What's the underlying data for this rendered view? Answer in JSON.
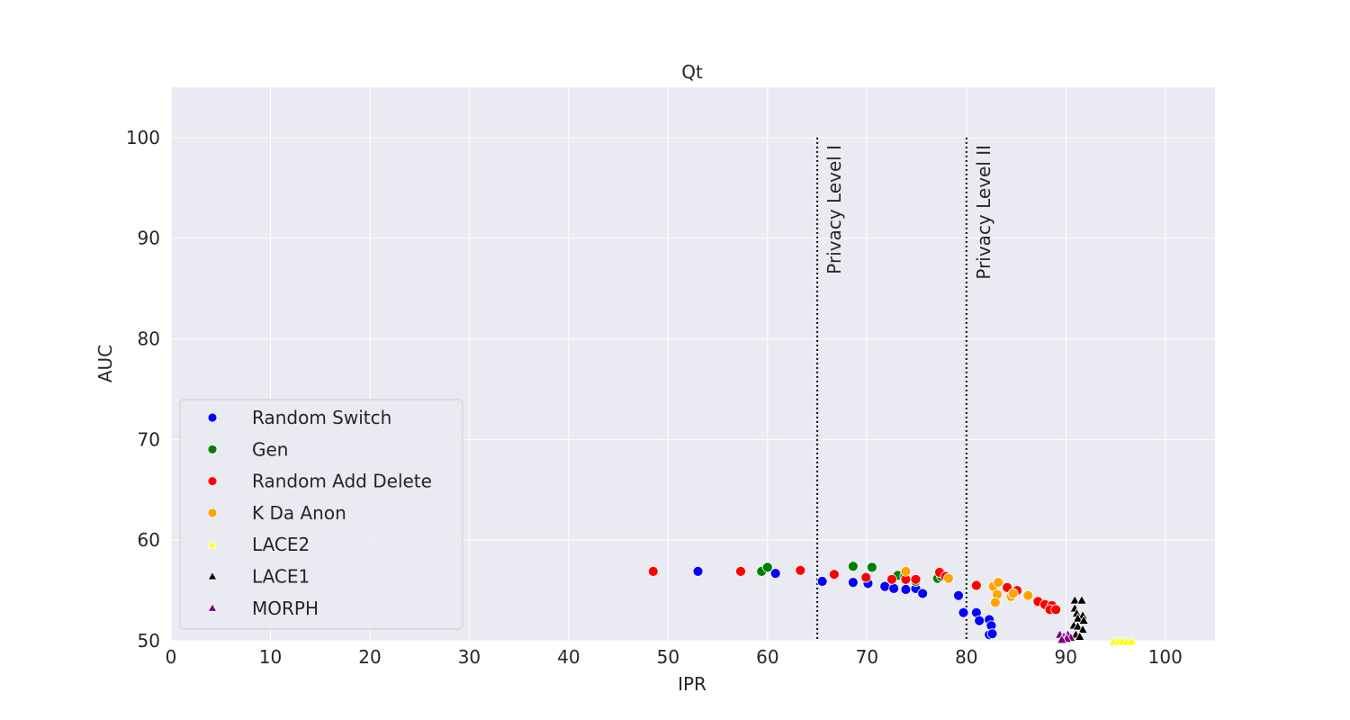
{
  "chart_data": {
    "type": "scatter",
    "title": "Qt",
    "xlabel": "IPR",
    "ylabel": "AUC",
    "xlim": [
      0,
      105
    ],
    "ylim": [
      50,
      105
    ],
    "xticks": [
      0,
      10,
      20,
      30,
      40,
      50,
      60,
      70,
      80,
      90,
      100
    ],
    "yticks": [
      50,
      60,
      70,
      80,
      90,
      100
    ],
    "grid": true,
    "legend_position": "lower-left",
    "vlines": [
      {
        "x": 65,
        "label": "Privacy Level I"
      },
      {
        "x": 80,
        "label": "Privacy Level II"
      }
    ],
    "series": [
      {
        "name": "Random Switch",
        "marker": "circle",
        "color": "#0000ff",
        "points": [
          [
            53,
            56.9
          ],
          [
            60.8,
            56.7
          ],
          [
            65.5,
            55.9
          ],
          [
            68.6,
            55.8
          ],
          [
            70.1,
            55.7
          ],
          [
            71.8,
            55.4
          ],
          [
            72.7,
            55.2
          ],
          [
            73.9,
            55.1
          ],
          [
            74.9,
            55.2
          ],
          [
            75.6,
            54.7
          ],
          [
            79.2,
            54.5
          ],
          [
            79.7,
            52.8
          ],
          [
            81,
            52.8
          ],
          [
            81.3,
            52
          ],
          [
            82.3,
            52.1
          ],
          [
            82.5,
            51.5
          ],
          [
            82.3,
            50.6
          ],
          [
            82.6,
            50.7
          ]
        ]
      },
      {
        "name": "Gen",
        "marker": "circle",
        "color": "#008000",
        "points": [
          [
            59.4,
            56.9
          ],
          [
            60,
            57.3
          ],
          [
            68.6,
            57.4
          ],
          [
            70.5,
            57.3
          ],
          [
            73.1,
            56.5
          ],
          [
            73.8,
            56.4
          ],
          [
            74.9,
            55.9
          ],
          [
            77.1,
            56.2
          ],
          [
            77.5,
            56.4
          ]
        ]
      },
      {
        "name": "Random Add Delete",
        "marker": "circle",
        "color": "#ff0000",
        "points": [
          [
            48.5,
            56.9
          ],
          [
            57.3,
            56.9
          ],
          [
            63.3,
            57
          ],
          [
            66.7,
            56.6
          ],
          [
            69.9,
            56.3
          ],
          [
            72.5,
            56.1
          ],
          [
            73.9,
            56.1
          ],
          [
            74.9,
            56.1
          ],
          [
            77.3,
            56.8
          ],
          [
            77.9,
            56.4
          ],
          [
            81,
            55.5
          ],
          [
            84.1,
            55.3
          ],
          [
            85.1,
            55
          ],
          [
            87.2,
            53.9
          ],
          [
            87.9,
            53.6
          ],
          [
            88.6,
            53.5
          ],
          [
            88.4,
            53.1
          ],
          [
            89,
            53.1
          ]
        ]
      },
      {
        "name": "K Da Anon",
        "marker": "circle",
        "color": "#ffa500",
        "points": [
          [
            73.9,
            56.9
          ],
          [
            78.2,
            56.2
          ],
          [
            82.7,
            55.4
          ],
          [
            83.2,
            55.8
          ],
          [
            83.1,
            54.6
          ],
          [
            82.9,
            53.8
          ],
          [
            84.5,
            54.4
          ],
          [
            84.7,
            54.7
          ],
          [
            86.2,
            54.5
          ]
        ]
      },
      {
        "name": "LACE2",
        "marker": "triangle",
        "color": "#ffff00",
        "points": [
          [
            94.8,
            49.9
          ],
          [
            95.3,
            49.9
          ],
          [
            95.7,
            49.9
          ],
          [
            96.1,
            49.9
          ],
          [
            96.6,
            49.9
          ]
        ]
      },
      {
        "name": "LACE1",
        "marker": "triangle",
        "color": "#000000",
        "points": [
          [
            90.9,
            54
          ],
          [
            91.6,
            54
          ],
          [
            90.9,
            53.2
          ],
          [
            91.1,
            52.7
          ],
          [
            91.7,
            52.5
          ],
          [
            91.2,
            52.2
          ],
          [
            91.8,
            52
          ],
          [
            90.8,
            51.5
          ],
          [
            91.2,
            51.4
          ],
          [
            91.7,
            51.1
          ],
          [
            91,
            50.6
          ],
          [
            91.4,
            50.4
          ]
        ]
      },
      {
        "name": "MORPH",
        "marker": "triangle",
        "color": "#800080",
        "points": [
          [
            89.4,
            50.6
          ],
          [
            89.8,
            50.4
          ],
          [
            90.2,
            50.6
          ],
          [
            90.5,
            50.3
          ],
          [
            90.1,
            50.2
          ],
          [
            89.6,
            50.1
          ]
        ]
      }
    ]
  }
}
